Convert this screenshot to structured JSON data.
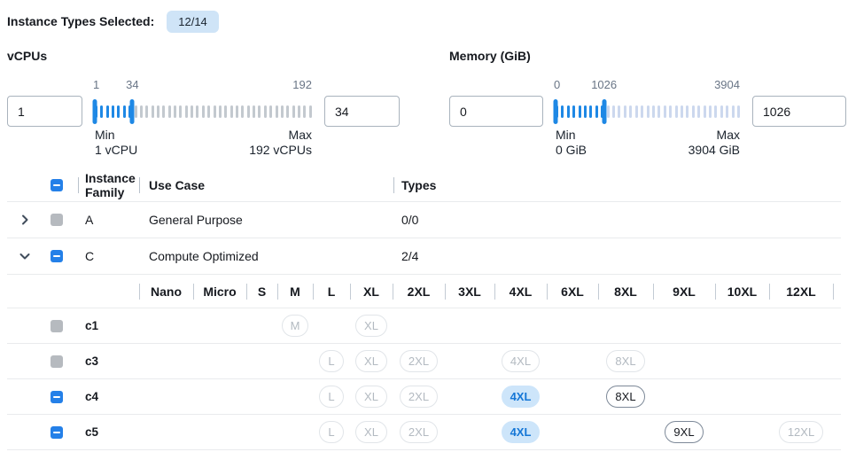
{
  "header": {
    "label": "Instance Types Selected:",
    "badge": "12/14"
  },
  "filters": {
    "vcpus": {
      "title": "vCPUs",
      "low": "1",
      "high": "34",
      "scale": {
        "min": 1,
        "max": 192,
        "low": 1,
        "high": 34
      },
      "scale_labels": [
        "1",
        "34",
        "192"
      ],
      "min_label": "Min",
      "min_caption": "1 vCPU",
      "max_label": "Max",
      "max_caption": "192 vCPUs",
      "tick_count": 39,
      "unselected_tick_color": "#c3c9cf"
    },
    "memory": {
      "title": "Memory (GiB)",
      "low": "0",
      "high": "1026",
      "scale": {
        "min": 0,
        "max": 3904,
        "low": 0,
        "high": 1026
      },
      "scale_labels": [
        "0",
        "1026",
        "3904"
      ],
      "min_label": "Min",
      "min_caption": "0 GiB",
      "max_label": "Max",
      "max_caption": "3904 GiB",
      "tick_count": 33,
      "unselected_tick_color": "#ccd8ee"
    }
  },
  "table": {
    "header": {
      "family": "Instance Family",
      "use_case": "Use Case",
      "types": "Types",
      "select_all_checkbox": "indeterminate"
    },
    "sizes": [
      "Nano",
      "Micro",
      "S",
      "M",
      "L",
      "XL",
      "2XL",
      "3XL",
      "4XL",
      "6XL",
      "8XL",
      "9XL",
      "10XL",
      "12XL"
    ],
    "rows": [
      {
        "family": "A",
        "use_case": "General Purpose",
        "types": "0/0",
        "expanded": false,
        "checkbox": "disabled"
      },
      {
        "family": "C",
        "use_case": "Compute Optimized",
        "types": "2/4",
        "expanded": true,
        "checkbox": "indeterminate",
        "instances": [
          {
            "name": "c1",
            "checkbox": "disabled",
            "sizes": {
              "M": "disabled",
              "XL": "disabled"
            }
          },
          {
            "name": "c3",
            "checkbox": "disabled",
            "sizes": {
              "L": "disabled",
              "XL": "disabled",
              "2XL": "disabled",
              "4XL": "disabled",
              "8XL": "disabled"
            }
          },
          {
            "name": "c4",
            "checkbox": "indeterminate",
            "sizes": {
              "L": "disabled",
              "XL": "disabled",
              "2XL": "disabled",
              "4XL": "selected",
              "8XL": "enabled"
            }
          },
          {
            "name": "c5",
            "checkbox": "indeterminate",
            "sizes": {
              "L": "disabled",
              "XL": "disabled",
              "2XL": "disabled",
              "4XL": "selected",
              "9XL": "enabled",
              "12XL": "disabled"
            }
          }
        ]
      }
    ]
  },
  "colors": {
    "accent_blue": "#2480e8",
    "slider_blue": "#1e88e5",
    "badge_bg": "#cfe4f7",
    "selected_pill_bg": "#cde5fa",
    "selected_pill_text": "#1476d6",
    "disabled_checkbox_grey": "#b6babf"
  }
}
